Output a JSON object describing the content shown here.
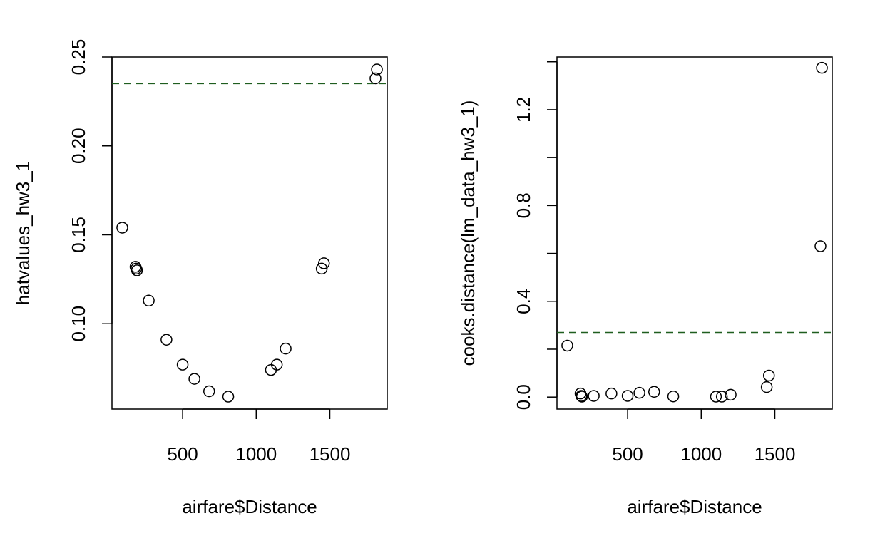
{
  "chart_data": [
    {
      "type": "scatter",
      "xlabel": "airfare$Distance",
      "ylabel": "hatvalues_hw3_1",
      "xlim": [
        20,
        1890
      ],
      "ylim": [
        0.052,
        0.25
      ],
      "xticks": [
        500,
        1000,
        1500
      ],
      "xtick_labels": [
        "500",
        "1000",
        "1500"
      ],
      "yticks": [
        0.1,
        0.15,
        0.2,
        0.25
      ],
      "ytick_labels": [
        "0.10",
        "0.15",
        "0.20",
        "0.25"
      ],
      "reference_line": {
        "y": 0.235,
        "style": "dashed",
        "color": "#1f5e1f"
      },
      "point_style": "open-circle",
      "points": [
        {
          "x": 90,
          "y": 0.154
        },
        {
          "x": 180,
          "y": 0.132
        },
        {
          "x": 185,
          "y": 0.131
        },
        {
          "x": 190,
          "y": 0.13
        },
        {
          "x": 270,
          "y": 0.113
        },
        {
          "x": 390,
          "y": 0.091
        },
        {
          "x": 500,
          "y": 0.077
        },
        {
          "x": 580,
          "y": 0.069
        },
        {
          "x": 680,
          "y": 0.062
        },
        {
          "x": 810,
          "y": 0.059
        },
        {
          "x": 1100,
          "y": 0.074
        },
        {
          "x": 1140,
          "y": 0.077
        },
        {
          "x": 1200,
          "y": 0.086
        },
        {
          "x": 1445,
          "y": 0.131
        },
        {
          "x": 1460,
          "y": 0.134
        },
        {
          "x": 1810,
          "y": 0.238
        },
        {
          "x": 1820,
          "y": 0.243
        }
      ]
    },
    {
      "type": "scatter",
      "xlabel": "airfare$Distance",
      "ylabel": "cooks.distance(lm_data_hw3_1)",
      "xlim": [
        20,
        1890
      ],
      "ylim": [
        -0.05,
        1.42
      ],
      "xticks": [
        500,
        1000,
        1500
      ],
      "xtick_labels": [
        "500",
        "1000",
        "1500"
      ],
      "yticks": [
        0.0,
        0.2,
        0.4,
        0.6,
        0.8,
        1.0,
        1.2,
        1.4
      ],
      "ytick_labels": [
        "0.0",
        "",
        "0.4",
        "",
        "0.8",
        "",
        "1.2",
        ""
      ],
      "reference_line": {
        "y": 0.27,
        "style": "dashed",
        "color": "#1f5e1f"
      },
      "point_style": "open-circle",
      "points": [
        {
          "x": 90,
          "y": 0.215
        },
        {
          "x": 180,
          "y": 0.015
        },
        {
          "x": 185,
          "y": 0.005
        },
        {
          "x": 190,
          "y": 0.002
        },
        {
          "x": 270,
          "y": 0.005
        },
        {
          "x": 390,
          "y": 0.015
        },
        {
          "x": 500,
          "y": 0.005
        },
        {
          "x": 580,
          "y": 0.018
        },
        {
          "x": 680,
          "y": 0.022
        },
        {
          "x": 810,
          "y": 0.003
        },
        {
          "x": 1100,
          "y": 0.002
        },
        {
          "x": 1140,
          "y": 0.002
        },
        {
          "x": 1200,
          "y": 0.01
        },
        {
          "x": 1445,
          "y": 0.042
        },
        {
          "x": 1460,
          "y": 0.09
        },
        {
          "x": 1810,
          "y": 0.63
        },
        {
          "x": 1820,
          "y": 1.375
        }
      ]
    }
  ]
}
